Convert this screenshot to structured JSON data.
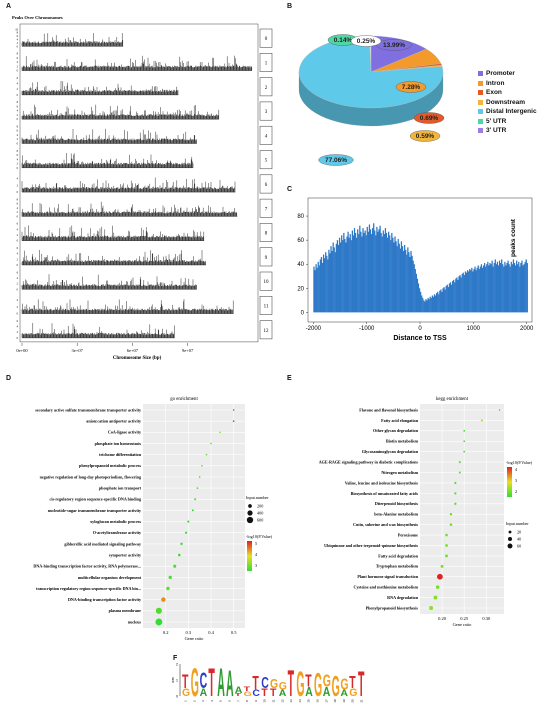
{
  "panel_labels": {
    "a": "A",
    "b": "B",
    "c": "C",
    "d": "D",
    "e": "E",
    "f": "F"
  },
  "chart_data": [
    {
      "id": "A",
      "type": "bar",
      "title": "Peaks Over Chromosomes",
      "xlabel": "Chromosome Size (bp)",
      "x_ticks": [
        "0e+00",
        "3e+07",
        "6e+07",
        "9e+07"
      ],
      "x_tick_values": [
        0,
        30000000,
        60000000,
        90000000
      ],
      "xlim": [
        0,
        125000000
      ],
      "chromosomes": [
        {
          "name": "0",
          "length": 55000000,
          "ymax": 10
        },
        {
          "name": "1",
          "length": 125000000,
          "ymax": 8
        },
        {
          "name": "2",
          "length": 85000000,
          "ymax": 6
        },
        {
          "name": "3",
          "length": 107000000,
          "ymax": 8
        },
        {
          "name": "4",
          "length": 95000000,
          "ymax": 8
        },
        {
          "name": "5",
          "length": 93000000,
          "ymax": 8
        },
        {
          "name": "6",
          "length": 116000000,
          "ymax": 5
        },
        {
          "name": "7",
          "length": 117000000,
          "ymax": 8
        },
        {
          "name": "8",
          "length": 99000000,
          "ymax": 6
        },
        {
          "name": "9",
          "length": 100000000,
          "ymax": 6
        },
        {
          "name": "10",
          "length": 95000000,
          "ymax": 6
        },
        {
          "name": "11",
          "length": 115000000,
          "ymax": 5
        },
        {
          "name": "12",
          "length": 83000000,
          "ymax": 6
        }
      ]
    },
    {
      "id": "B",
      "type": "pie",
      "labels": [
        "Promoter",
        "Intron",
        "Exon",
        "Downstream",
        "Distal Intergenic",
        "5' UTR",
        "3' UTR"
      ],
      "values": [
        13.99,
        7.28,
        0.69,
        0.59,
        77.06,
        0.14,
        0.25
      ],
      "value_labels": [
        "13.99%",
        "7.28%",
        "0.69%",
        "0.59%",
        "77.06%",
        "0.14%",
        "0.25%"
      ],
      "colors": [
        "#7f6fe0",
        "#f39a2d",
        "#e05a2a",
        "#f2b43a",
        "#5fc9ea",
        "#4fd6a5",
        "#ffffff"
      ],
      "legend": "right"
    },
    {
      "id": "C",
      "type": "bar",
      "xlabel": "Distance to TSS",
      "ylabel": "peaks count",
      "xlim": [
        -2100,
        2100
      ],
      "ylim": [
        -8,
        95
      ],
      "x_ticks": [
        "-2000",
        "-1000",
        "0",
        "1000",
        "2000"
      ],
      "x_tick_values": [
        -2000,
        -1000,
        0,
        1000,
        2000
      ],
      "y_ticks": [
        "0",
        "20",
        "40",
        "60",
        "80"
      ],
      "y_tick_values": [
        0,
        20,
        40,
        60,
        80
      ],
      "bin_start": -2000,
      "bin_width": 20,
      "values": [
        38,
        35,
        40,
        37,
        42,
        39,
        44,
        46,
        41,
        48,
        45,
        50,
        47,
        44,
        52,
        49,
        55,
        51,
        58,
        54,
        50,
        57,
        60,
        56,
        62,
        58,
        64,
        60,
        66,
        61,
        58,
        63,
        67,
        62,
        65,
        60,
        68,
        64,
        70,
        66,
        62,
        69,
        65,
        72,
        67,
        63,
        70,
        66,
        68,
        64,
        71,
        67,
        73,
        69,
        65,
        70,
        74,
        68,
        64,
        71,
        67,
        69,
        72,
        66,
        63,
        68,
        65,
        70,
        66,
        62,
        67,
        64,
        60,
        66,
        62,
        58,
        63,
        59,
        55,
        61,
        57,
        53,
        59,
        55,
        51,
        56,
        52,
        48,
        54,
        50,
        46,
        51,
        47,
        43,
        40,
        36,
        32,
        28,
        24,
        20,
        17,
        14,
        12,
        10,
        9,
        11,
        10,
        12,
        11,
        13,
        12,
        14,
        13,
        15,
        14,
        16,
        17,
        15,
        18,
        19,
        17,
        20,
        21,
        19,
        22,
        23,
        21,
        24,
        25,
        23,
        26,
        27,
        25,
        28,
        29,
        27,
        30,
        31,
        29,
        32,
        33,
        31,
        34,
        33,
        35,
        34,
        36,
        35,
        37,
        34,
        36,
        38,
        35,
        37,
        39,
        36,
        38,
        40,
        37,
        39,
        41,
        38,
        40,
        42,
        39,
        41,
        40,
        43,
        38,
        41,
        44,
        40,
        42,
        39,
        43,
        41,
        44,
        40,
        38,
        42,
        39,
        41,
        43,
        40,
        38,
        42,
        40,
        44,
        41,
        39,
        43,
        40,
        42,
        38,
        41,
        43,
        39,
        40,
        42,
        44,
        41
      ],
      "grid": false
    },
    {
      "id": "D",
      "type": "scatter",
      "title": "go enrichment",
      "xlabel": "Gene ratio",
      "xlim": [
        0.1,
        0.55
      ],
      "x_ticks": [
        "0.2",
        "0.3",
        "0.4",
        "0.5"
      ],
      "x_tick_values": [
        0.2,
        0.3,
        0.4,
        0.5
      ],
      "categories": [
        "secondary active sulfate transmembrane transporter activity",
        "anion:cation antiporter activity",
        "CoA-ligase activity",
        "phosphate ion homeostasis",
        "trichome differentiation",
        "phenylpropanoid metabolic process",
        "negative regulation of long-day photoperiodism, flowering",
        "phosphate ion transport",
        "cis-regulatory region sequence-specific DNA binding",
        "nucleotide-sugar transmembrane transporter activity",
        "xyloglucan metabolic process",
        "O-acetyltransferase activity",
        "gibberellic acid mediated signaling pathway",
        "symporter activity",
        "DNA-binding transcription factor activity, RNA polymerase...",
        "multicellular organism development",
        "transcription regulatory region sequence-specific DNA bin...",
        "DNA-binding transcription factor activity",
        "plasma membrane",
        "nucleus"
      ],
      "series": [
        {
          "name": "",
          "x": [
            0.5,
            0.5,
            0.44,
            0.4,
            0.38,
            0.36,
            0.35,
            0.34,
            0.33,
            0.32,
            0.3,
            0.29,
            0.27,
            0.26,
            0.24,
            0.22,
            0.21,
            0.19,
            0.17,
            0.17
          ],
          "size": [
            20,
            20,
            25,
            30,
            35,
            40,
            40,
            45,
            60,
            60,
            70,
            75,
            90,
            100,
            140,
            150,
            180,
            300,
            550,
            700
          ],
          "color_value": [
            5.5,
            5.6,
            3.4,
            3.2,
            3.1,
            3.1,
            3.0,
            3.0,
            3.0,
            2.9,
            2.9,
            2.9,
            2.9,
            2.9,
            3.0,
            2.9,
            3.1,
            4.8,
            3.0,
            2.8
          ]
        }
      ],
      "size_legend_title": "Input.number",
      "size_legend_values": [
        "200",
        "400",
        "600"
      ],
      "color_legend_title": "-log10(P.Value)",
      "color_legend_ticks": [
        "5",
        "4",
        "3"
      ],
      "colors": {
        "low": "#33dd33",
        "mid": "#e8e020",
        "high": "#dd2222"
      }
    },
    {
      "id": "E",
      "type": "scatter",
      "title": "kegg enrichment",
      "xlabel": "Gene ratio",
      "xlim": [
        0.15,
        0.34
      ],
      "x_ticks": [
        "0.20",
        "0.25",
        "0.30"
      ],
      "x_tick_values": [
        0.2,
        0.25,
        0.3
      ],
      "categories": [
        "Flavone and flavonol biosynthesis",
        "Fatty acid elongation",
        "Other glycan degradation",
        "Biotin metabolism",
        "Glycosaminoglycan degradation",
        "AGE-RAGE signaling pathway in diabetic complications",
        "Nitrogen metabolism",
        "Valine, leucine and isoleucine biosynthesis",
        "Biosynthesis of unsaturated fatty acids",
        "Diterpenoid biosynthesis",
        "beta-Alanine metabolism",
        "Cutin, suberine and wax biosynthesis",
        "Peroxisome",
        "Ubiquinone and other terpenoid-quinone biosynthesis",
        "Fatty acid degradation",
        "Tryptophan metabolism",
        "Plant hormone signal transduction",
        "Cysteine and methionine metabolism",
        "RNA degradation",
        "Phenylpropanoid biosynthesis"
      ],
      "series": [
        {
          "name": "",
          "x": [
            0.33,
            0.29,
            0.25,
            0.25,
            0.25,
            0.24,
            0.24,
            0.23,
            0.23,
            0.23,
            0.22,
            0.22,
            0.21,
            0.21,
            0.21,
            0.2,
            0.195,
            0.19,
            0.185,
            0.175
          ],
          "size": [
            5,
            10,
            8,
            8,
            8,
            10,
            10,
            12,
            12,
            14,
            14,
            16,
            18,
            18,
            20,
            22,
            80,
            30,
            35,
            40
          ],
          "color_value": [
            1.8,
            2.6,
            2.0,
            2.0,
            2.0,
            2.0,
            2.1,
            2.1,
            2.1,
            2.2,
            2.2,
            2.3,
            2.3,
            2.3,
            2.3,
            2.4,
            4.6,
            2.3,
            2.4,
            2.5
          ]
        }
      ],
      "size_legend_title": "Input.number",
      "size_legend_values": [
        "20",
        "40",
        "60"
      ],
      "color_legend_title": "-log10(P.Value)",
      "color_legend_ticks": [
        "4",
        "3",
        "2"
      ],
      "colors": {
        "low": "#33dd33",
        "mid": "#e8e020",
        "high": "#dd2222"
      }
    },
    {
      "id": "F",
      "type": "other",
      "description_kind": "sequence-logo",
      "ylabel": "bits",
      "y_ticks": [
        "0",
        "1",
        "2"
      ],
      "positions": [
        {
          "n": "1",
          "letters": [
            {
              "l": "T",
              "h": 0.9
            },
            {
              "l": "G",
              "h": 0.5
            }
          ]
        },
        {
          "n": "2",
          "letters": [
            {
              "l": "G",
              "h": 1.8
            }
          ]
        },
        {
          "n": "3",
          "letters": [
            {
              "l": "C",
              "h": 1.0
            },
            {
              "l": "A",
              "h": 0.5
            }
          ]
        },
        {
          "n": "4",
          "letters": [
            {
              "l": "T",
              "h": 1.8
            }
          ]
        },
        {
          "n": "5",
          "letters": [
            {
              "l": "A",
              "h": 1.8
            }
          ]
        },
        {
          "n": "6",
          "letters": [
            {
              "l": "A",
              "h": 1.7
            }
          ]
        },
        {
          "n": "7",
          "letters": [
            {
              "l": "A",
              "h": 0.4
            },
            {
              "l": "T",
              "h": 0.2
            }
          ]
        },
        {
          "n": "8",
          "letters": [
            {
              "l": "G",
              "h": 0.3
            },
            {
              "l": "T",
              "h": 0.3
            }
          ]
        },
        {
          "n": "9",
          "letters": [
            {
              "l": "T",
              "h": 0.9
            },
            {
              "l": "C",
              "h": 0.4
            }
          ]
        },
        {
          "n": "10",
          "letters": [
            {
              "l": "T",
              "h": 0.5
            },
            {
              "l": "C",
              "h": 0.7
            }
          ]
        },
        {
          "n": "11",
          "letters": [
            {
              "l": "G",
              "h": 0.6
            },
            {
              "l": "T",
              "h": 0.5
            }
          ]
        },
        {
          "n": "12",
          "letters": [
            {
              "l": "A",
              "h": 0.4
            },
            {
              "l": "G",
              "h": 0.5
            }
          ]
        },
        {
          "n": "13",
          "letters": [
            {
              "l": "T",
              "h": 1.7
            }
          ]
        },
        {
          "n": "14",
          "letters": [
            {
              "l": "G",
              "h": 1.6
            }
          ]
        },
        {
          "n": "15",
          "letters": [
            {
              "l": "T",
              "h": 0.8
            },
            {
              "l": "A",
              "h": 0.6
            }
          ]
        },
        {
          "n": "16",
          "letters": [
            {
              "l": "G",
              "h": 1.5
            }
          ]
        },
        {
          "n": "17",
          "letters": [
            {
              "l": "A",
              "h": 0.6
            },
            {
              "l": "G",
              "h": 0.8
            }
          ]
        },
        {
          "n": "18",
          "letters": [
            {
              "l": "G",
              "h": 1.3
            }
          ]
        },
        {
          "n": "19",
          "letters": [
            {
              "l": "A",
              "h": 0.4
            },
            {
              "l": "G",
              "h": 0.7
            }
          ]
        },
        {
          "n": "20",
          "letters": [
            {
              "l": "T",
              "h": 0.8
            },
            {
              "l": "G",
              "h": 0.5
            }
          ]
        },
        {
          "n": "21",
          "letters": [
            {
              "l": "T",
              "h": 1.6
            }
          ]
        }
      ],
      "letter_colors": {
        "A": "#2e9c2e",
        "C": "#2a3fc9",
        "G": "#f0a020",
        "T": "#d92a2a"
      }
    }
  ]
}
